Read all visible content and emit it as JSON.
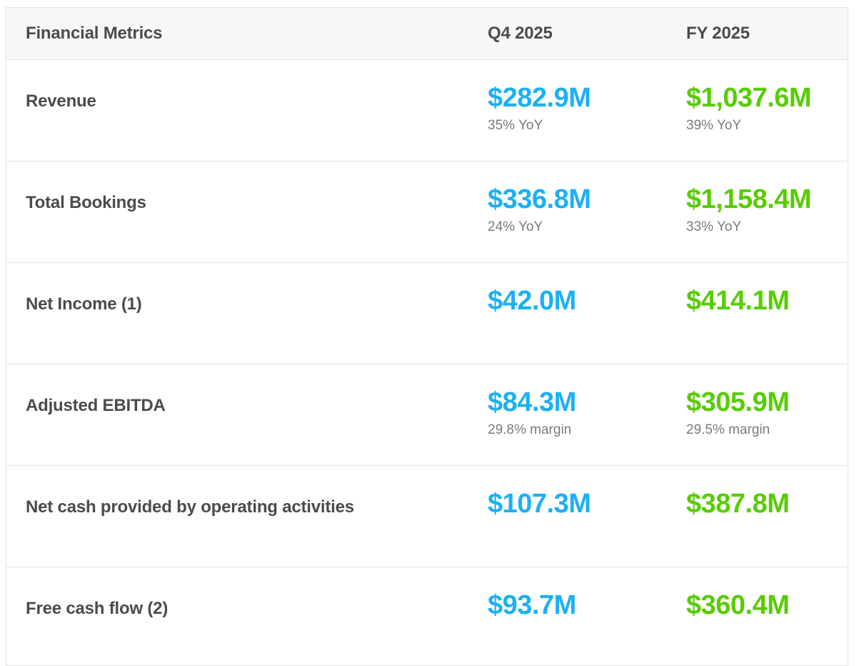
{
  "colors": {
    "q4_accent": "#1cb0f6",
    "fy_accent": "#58cc02",
    "text_color": "#4b4b4b",
    "sub_color": "#7a7a7a",
    "header_bg": "#f7f7f7",
    "border_color": "#e4e4e4"
  },
  "table": {
    "columns": {
      "metric": "Financial Metrics",
      "q4": "Q4 2025",
      "fy": "FY 2025"
    },
    "rows": [
      {
        "label": "Revenue",
        "q4_value": "$282.9M",
        "q4_sub": "35% YoY",
        "fy_value": "$1,037.6M",
        "fy_sub": "39% YoY"
      },
      {
        "label": "Total Bookings",
        "q4_value": "$336.8M",
        "q4_sub": "24% YoY",
        "fy_value": "$1,158.4M",
        "fy_sub": "33% YoY"
      },
      {
        "label": "Net Income (1)",
        "q4_value": "$42.0M",
        "q4_sub": "",
        "fy_value": "$414.1M",
        "fy_sub": ""
      },
      {
        "label": "Adjusted EBITDA",
        "q4_value": "$84.3M",
        "q4_sub": "29.8% margin",
        "fy_value": "$305.9M",
        "fy_sub": "29.5% margin"
      },
      {
        "label": "Net cash provided by operating activities",
        "q4_value": "$107.3M",
        "q4_sub": "",
        "fy_value": "$387.8M",
        "fy_sub": ""
      },
      {
        "label": "Free cash flow (2)",
        "q4_value": "$93.7M",
        "q4_sub": "",
        "fy_value": "$360.4M",
        "fy_sub": ""
      }
    ]
  },
  "chart_data": {
    "type": "table",
    "title": "Financial Metrics",
    "columns": [
      "Financial Metrics",
      "Q4 2025",
      "FY 2025"
    ],
    "rows": [
      [
        "Revenue",
        "$282.9M (35% YoY)",
        "$1,037.6M (39% YoY)"
      ],
      [
        "Total Bookings",
        "$336.8M (24% YoY)",
        "$1,158.4M (33% YoY)"
      ],
      [
        "Net Income (1)",
        "$42.0M",
        "$414.1M"
      ],
      [
        "Adjusted EBITDA",
        "$84.3M (29.8% margin)",
        "$305.9M (29.5% margin)"
      ],
      [
        "Net cash provided by operating activities",
        "$107.3M",
        "$387.8M"
      ],
      [
        "Free cash flow (2)",
        "$93.7M",
        "$360.4M"
      ]
    ]
  }
}
